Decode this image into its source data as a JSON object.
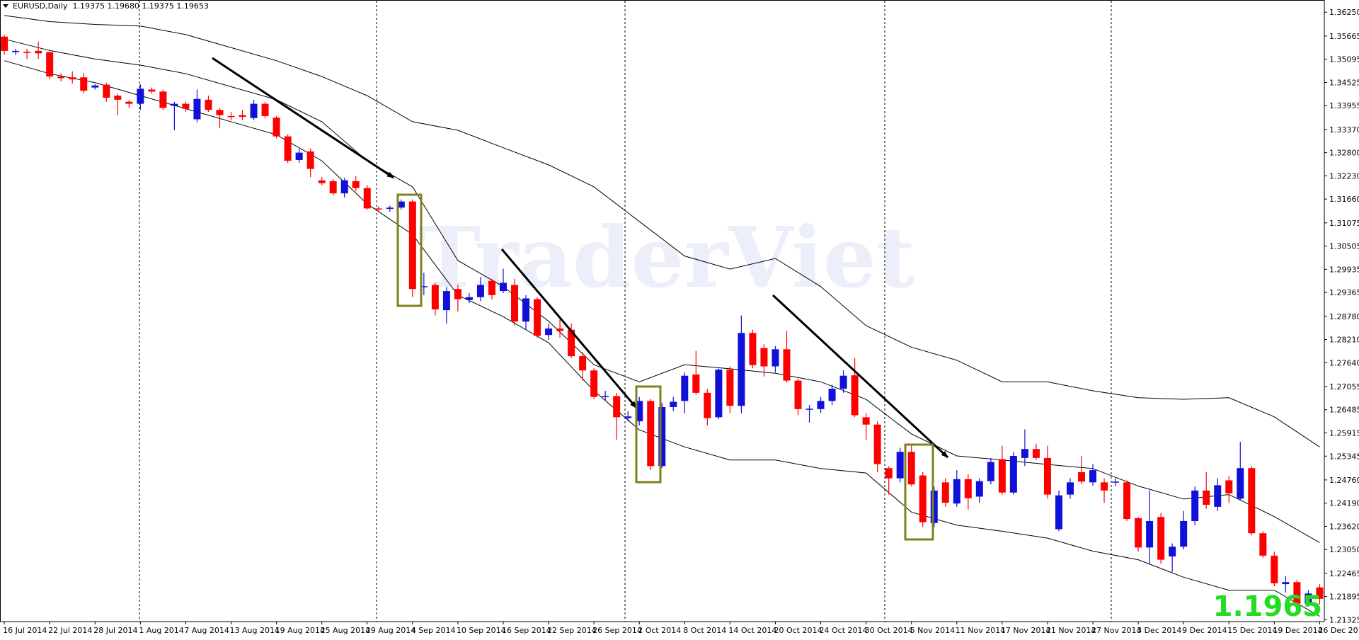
{
  "chart_data": {
    "type": "candlestick",
    "header": "EURUSD,Daily  1.19375 1.19680 1.19375 1.19653",
    "watermark": "TraderViet",
    "price_label": "1.1965",
    "up_color": "#1010d8",
    "down_color": "#ff0000",
    "band_color": "#000000",
    "categories": [
      "16 Jul 2014",
      null,
      null,
      null,
      "22 Jul 2014",
      null,
      null,
      null,
      "28 Jul 2014",
      null,
      null,
      null,
      "1 Aug 2014",
      null,
      null,
      null,
      "7 Aug 2014",
      null,
      null,
      null,
      "13 Aug 2014",
      null,
      null,
      null,
      "19 Aug 2014",
      null,
      null,
      null,
      "25 Aug 2014",
      null,
      null,
      null,
      "29 Aug 2014",
      null,
      null,
      null,
      "4 Sep 2014",
      null,
      null,
      null,
      "10 Sep 2014",
      null,
      null,
      null,
      "16 Sep 2014",
      null,
      null,
      null,
      "22 Sep 2014",
      null,
      null,
      null,
      "26 Sep 2014",
      null,
      null,
      null,
      "2 Oct 2014",
      null,
      null,
      null,
      "8 Oct 2014",
      null,
      null,
      null,
      "14 Oct 2014",
      null,
      null,
      null,
      "20 Oct 2014",
      null,
      null,
      null,
      "24 Oct 2014",
      null,
      null,
      null,
      "30 Oct 2014",
      null,
      null,
      null,
      "5 Nov 2014",
      null,
      null,
      null,
      "11 Nov 2014",
      null,
      null,
      null,
      "17 Nov 2014",
      null,
      null,
      null,
      "21 Nov 2014",
      null,
      null,
      null,
      "27 Nov 2014",
      null,
      null,
      null,
      "3 Dec 2014",
      null,
      null,
      null,
      "9 Dec 2014",
      null,
      null,
      null,
      "15 Dec 2014",
      null,
      null,
      null,
      "19 Dec 2014",
      null,
      null,
      null,
      "26 Dec 2014"
    ],
    "open": [
      1.3565,
      1.3527,
      1.3528,
      1.353,
      1.3527,
      1.3467,
      1.3465,
      1.3465,
      1.344,
      1.3447,
      1.342,
      1.3405,
      1.34,
      1.3435,
      1.343,
      1.3395,
      1.34,
      1.3362,
      1.341,
      1.3385,
      1.337,
      1.3372,
      1.3365,
      1.34,
      1.3366,
      1.332,
      1.3262,
      1.3283,
      1.3212,
      1.321,
      1.318,
      1.321,
      1.3193,
      1.3143,
      1.3142,
      1.3145,
      1.316,
      1.295,
      1.2955,
      1.2893,
      1.2945,
      1.2918,
      1.2925,
      1.2965,
      1.294,
      1.2955,
      1.2865,
      1.292,
      1.2832,
      1.2848,
      1.2845,
      1.278,
      1.2745,
      1.268,
      1.2682,
      1.2628,
      1.262,
      1.267,
      1.251,
      1.2655,
      1.267,
      1.2735,
      1.269,
      1.263,
      1.2747,
      1.2658,
      1.2837,
      1.28,
      1.2755,
      1.2797,
      1.272,
      1.265,
      1.265,
      1.267,
      1.27,
      1.2733,
      1.263,
      1.2612,
      1.2505,
      1.248,
      1.2545,
      1.2487,
      1.237,
      1.247,
      1.2418,
      1.2478,
      1.2435,
      1.2473,
      1.2527,
      1.2445,
      1.253,
      1.2552,
      1.253,
      1.2355,
      1.244,
      1.2495,
      1.247,
      1.247,
      1.247,
      1.247,
      1.2382,
      1.231,
      1.2385,
      1.2288,
      1.2312,
      1.2375,
      1.245,
      1.241,
      1.2475,
      1.243,
      1.2505,
      1.2345,
      1.229,
      1.222,
      1.2225,
      1.2172,
      1.2212
    ],
    "high": [
      1.357,
      1.3535,
      1.3535,
      1.3553,
      1.3528,
      1.3475,
      1.348,
      1.3475,
      1.3448,
      1.3452,
      1.3425,
      1.341,
      1.3448,
      1.344,
      1.3435,
      1.3405,
      1.3405,
      1.3435,
      1.342,
      1.339,
      1.338,
      1.3385,
      1.341,
      1.3405,
      1.337,
      1.3325,
      1.329,
      1.329,
      1.322,
      1.3215,
      1.3218,
      1.3222,
      1.32,
      1.3148,
      1.315,
      1.3165,
      1.3165,
      1.2985,
      1.296,
      1.295,
      1.2955,
      1.2935,
      1.2975,
      1.297,
      1.2995,
      1.297,
      1.293,
      1.2925,
      1.286,
      1.287,
      1.286,
      1.279,
      1.275,
      1.2695,
      1.269,
      1.2645,
      1.268,
      1.2675,
      1.2665,
      1.268,
      1.274,
      1.2793,
      1.27,
      1.275,
      1.2755,
      1.288,
      1.2845,
      1.281,
      1.2805,
      1.2842,
      1.2725,
      1.266,
      1.268,
      1.271,
      1.2745,
      1.2775,
      1.264,
      1.262,
      1.251,
      1.2555,
      1.2565,
      1.2495,
      1.246,
      1.248,
      1.25,
      1.249,
      1.248,
      1.253,
      1.256,
      1.2545,
      1.26,
      1.2565,
      1.256,
      1.245,
      1.248,
      1.2535,
      1.2515,
      1.248,
      1.248,
      1.2475,
      1.2385,
      1.245,
      1.2395,
      1.232,
      1.24,
      1.246,
      1.2495,
      1.248,
      1.2485,
      1.257,
      1.251,
      1.235,
      1.23,
      1.224,
      1.223,
      1.2205,
      1.222
    ],
    "low": [
      1.352,
      1.352,
      1.351,
      1.351,
      1.346,
      1.3455,
      1.345,
      1.3425,
      1.3435,
      1.3405,
      1.3372,
      1.339,
      1.3385,
      1.3425,
      1.3385,
      1.3335,
      1.338,
      1.3355,
      1.338,
      1.334,
      1.336,
      1.336,
      1.336,
      1.3365,
      1.3315,
      1.3255,
      1.3255,
      1.322,
      1.32,
      1.3175,
      1.317,
      1.3185,
      1.314,
      1.3135,
      1.3135,
      1.314,
      1.2925,
      1.293,
      1.288,
      1.286,
      1.289,
      1.291,
      1.2915,
      1.292,
      1.2935,
      1.2855,
      1.2845,
      1.2825,
      1.282,
      1.2825,
      1.2775,
      1.272,
      1.2675,
      1.267,
      1.2575,
      1.262,
      1.261,
      1.25,
      1.2505,
      1.2645,
      1.264,
      1.2685,
      1.261,
      1.2625,
      1.264,
      1.264,
      1.275,
      1.273,
      1.274,
      1.2715,
      1.2635,
      1.2617,
      1.264,
      1.266,
      1.269,
      1.263,
      1.2575,
      1.2495,
      1.244,
      1.247,
      1.246,
      1.236,
      1.236,
      1.241,
      1.241,
      1.2403,
      1.242,
      1.2465,
      1.244,
      1.244,
      1.251,
      1.2525,
      1.243,
      1.235,
      1.243,
      1.2465,
      1.2462,
      1.242,
      1.246,
      1.2375,
      1.23,
      1.227,
      1.227,
      1.225,
      1.2305,
      1.2365,
      1.2405,
      1.24,
      1.242,
      1.2425,
      1.234,
      1.2285,
      1.2215,
      1.22,
      1.2165,
      1.2165,
      1.217
    ],
    "close": [
      1.353,
      1.353,
      1.3525,
      1.3524,
      1.3467,
      1.3463,
      1.346,
      1.3432,
      1.3445,
      1.3415,
      1.341,
      1.34,
      1.3437,
      1.343,
      1.339,
      1.34,
      1.3388,
      1.3412,
      1.3385,
      1.3372,
      1.3369,
      1.3368,
      1.34,
      1.337,
      1.332,
      1.326,
      1.328,
      1.324,
      1.3205,
      1.318,
      1.3212,
      1.3193,
      1.3143,
      1.3142,
      1.3145,
      1.316,
      1.2945,
      1.2952,
      1.2895,
      1.294,
      1.292,
      1.2925,
      1.2955,
      1.293,
      1.296,
      1.2865,
      1.2922,
      1.283,
      1.2848,
      1.2842,
      1.278,
      1.2745,
      1.268,
      1.2682,
      1.263,
      1.2632,
      1.267,
      1.251,
      1.2655,
      1.2668,
      1.2732,
      1.269,
      1.2628,
      1.2747,
      1.2658,
      1.2837,
      1.2758,
      1.2755,
      1.2797,
      1.272,
      1.265,
      1.2651,
      1.267,
      1.27,
      1.2732,
      1.2635,
      1.2612,
      1.2515,
      1.248,
      1.2545,
      1.2465,
      1.2372,
      1.245,
      1.242,
      1.2478,
      1.2431,
      1.2473,
      1.252,
      1.2445,
      1.2535,
      1.2552,
      1.253,
      1.244,
      1.2438,
      1.247,
      1.2472,
      1.25,
      1.245,
      1.2472,
      1.238,
      1.231,
      1.2375,
      1.228,
      1.2312,
      1.2375,
      1.245,
      1.2415,
      1.2463,
      1.2443,
      1.2505,
      1.2345,
      1.229,
      1.2222,
      1.2225,
      1.2172,
      1.2197,
      1.2184
    ],
    "band_x": [
      "16 Jul 2014",
      "22 Jul 2014",
      "28 Jul 2014",
      "1 Aug 2014",
      "7 Aug 2014",
      "13 Aug 2014",
      "19 Aug 2014",
      "25 Aug 2014",
      "29 Aug 2014",
      "4 Sep 2014",
      "10 Sep 2014",
      "16 Sep 2014",
      "22 Sep 2014",
      "26 Sep 2014",
      "2 Oct 2014",
      "8 Oct 2014",
      "14 Oct 2014",
      "20 Oct 2014",
      "24 Oct 2014",
      "30 Oct 2014",
      "5 Nov 2014",
      "11 Nov 2014",
      "17 Nov 2014",
      "21 Nov 2014",
      "27 Nov 2014",
      "3 Dec 2014",
      "9 Dec 2014",
      "15 Dec 2014",
      "19 Dec 2014",
      "26 Dec 2014"
    ],
    "bands": [
      {
        "values": [
          1.3617,
          1.3602,
          1.3595,
          1.3591,
          1.357,
          1.3538,
          1.3506,
          1.3467,
          1.342,
          1.3356,
          1.3335,
          1.3292,
          1.325,
          1.3196,
          1.3111,
          1.3026,
          1.2994,
          1.302,
          1.2951,
          1.2855,
          1.2802,
          1.277,
          1.2717,
          1.2717,
          1.2695,
          1.2678,
          1.2674,
          1.2678,
          1.2631,
          1.2557
        ]
      },
      {
        "values": [
          1.3559,
          1.3531,
          1.351,
          1.3495,
          1.3474,
          1.3442,
          1.341,
          1.3356,
          1.326,
          1.3196,
          1.3015,
          1.2951,
          1.2866,
          1.2759,
          1.2717,
          1.2759,
          1.2749,
          1.2738,
          1.2717,
          1.2674,
          1.2589,
          1.2535,
          1.2525,
          1.2514,
          1.2504,
          1.2461,
          1.2429,
          1.244,
          1.2386,
          1.2322
        ]
      },
      {
        "values": [
          1.3506,
          1.3474,
          1.3452,
          1.342,
          1.3388,
          1.3356,
          1.3324,
          1.326,
          1.3154,
          1.3079,
          1.293,
          1.2877,
          1.2813,
          1.2695,
          1.2599,
          1.2557,
          1.2525,
          1.2525,
          1.2504,
          1.2493,
          1.2397,
          1.2365,
          1.235,
          1.2333,
          1.2301,
          1.228,
          1.2237,
          1.2205,
          1.2205,
          1.2141
        ]
      }
    ],
    "ylim": [
      1.2128,
      1.3655
    ],
    "yticks": [
      {
        "value": 1.3625,
        "label": "1.36250"
      },
      1.35665,
      1.35095,
      1.34525,
      1.33955,
      {
        "value": 1.3337,
        "label": "1.33370"
      },
      {
        "value": 1.328,
        "label": "1.32800"
      },
      {
        "value": 1.3223,
        "label": "1.32230"
      },
      {
        "value": 1.3166,
        "label": "1.31660"
      },
      1.31075,
      1.30505,
      1.29935,
      1.29365,
      {
        "value": 1.2878,
        "label": "1.28780"
      },
      {
        "value": 1.2821,
        "label": "1.28210"
      },
      {
        "value": 1.2764,
        "label": "1.27640"
      },
      1.27055,
      1.26485,
      1.25915,
      1.25345,
      {
        "value": 1.2476,
        "label": "1.24760"
      },
      {
        "value": 1.2419,
        "label": "1.24190"
      },
      {
        "value": 1.2362,
        "label": "1.23620"
      },
      {
        "value": 1.2305,
        "label": "1.23050"
      },
      1.22465,
      1.21895,
      1.21325
    ],
    "grid": false
  }
}
